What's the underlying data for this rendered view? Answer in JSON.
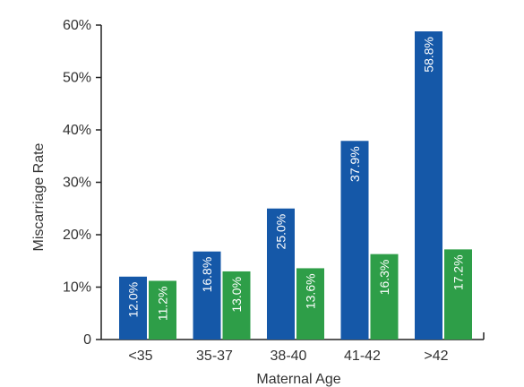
{
  "chart_data": {
    "type": "bar",
    "categories": [
      "<35",
      "35-37",
      "38-40",
      "41-42",
      ">42"
    ],
    "series": [
      {
        "color": "#1558a8",
        "values": [
          12.0,
          16.8,
          25.0,
          37.9,
          58.8
        ]
      },
      {
        "color": "#2e9e48",
        "values": [
          11.2,
          13.0,
          13.6,
          16.3,
          17.2
        ]
      }
    ],
    "data_labels": [
      [
        "12.0%",
        "16.8%",
        "25.0%",
        "37.9%",
        "58.8%"
      ],
      [
        "11.2%",
        "13.0%",
        "13.6%",
        "16.3%",
        "17.2%"
      ]
    ],
    "xlabel": "Maternal Age",
    "ylabel": "Miscarriage Rate",
    "ylim": [
      0,
      60
    ],
    "yticks": [
      0,
      10,
      20,
      30,
      40,
      50,
      60
    ],
    "ytick_labels": [
      "0",
      "10%",
      "20%",
      "30%",
      "40%",
      "50%",
      "60%"
    ],
    "grid": false,
    "axis_color": "#222222"
  }
}
